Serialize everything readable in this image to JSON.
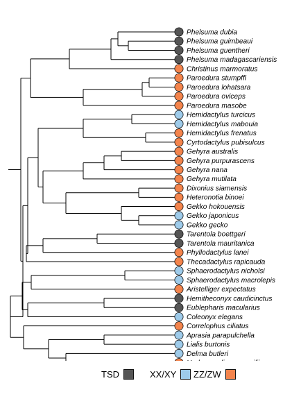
{
  "colors": {
    "TSD": "#555555",
    "XX/XY": "#9ecbea",
    "ZZ/ZW": "#f4844c"
  },
  "legend": [
    {
      "code": "TSD",
      "label": "TSD"
    },
    {
      "code": "XX/XY",
      "label": "XX/XY"
    },
    {
      "code": "ZZ/ZW",
      "label": "ZZ/ZW"
    }
  ],
  "taxa": [
    {
      "name": "Phelsuma dubia",
      "sd": "TSD"
    },
    {
      "name": "Phelsuma guimbeaui",
      "sd": "TSD"
    },
    {
      "name": "Phelsuma guentheri",
      "sd": "TSD"
    },
    {
      "name": "Phelsuma madagascariensis",
      "sd": "TSD"
    },
    {
      "name": "Christinus marmoratus",
      "sd": "ZZ/ZW"
    },
    {
      "name": "Paroedura stumpffi",
      "sd": "ZZ/ZW"
    },
    {
      "name": "Paroedura lohatsara",
      "sd": "ZZ/ZW"
    },
    {
      "name": "Paroedura oviceps",
      "sd": "ZZ/ZW"
    },
    {
      "name": "Paroedura masobe",
      "sd": "ZZ/ZW"
    },
    {
      "name": "Hemidactylus turcicus",
      "sd": "XX/XY"
    },
    {
      "name": "Hemidactylus mabouia",
      "sd": "XX/XY"
    },
    {
      "name": "Hemidactylus frenatus",
      "sd": "ZZ/ZW"
    },
    {
      "name": "Cyrtodactylus pubisulcus",
      "sd": "ZZ/ZW"
    },
    {
      "name": "Gehyra australis",
      "sd": "ZZ/ZW"
    },
    {
      "name": "Gehyra purpurascens",
      "sd": "ZZ/ZW"
    },
    {
      "name": "Gehyra nana",
      "sd": "ZZ/ZW"
    },
    {
      "name": "Gehyra mutilata",
      "sd": "ZZ/ZW"
    },
    {
      "name": "Dixonius siamensis",
      "sd": "ZZ/ZW"
    },
    {
      "name": "Heteronotia binoei",
      "sd": "ZZ/ZW"
    },
    {
      "name": "Gekko hokouensis",
      "sd": "ZZ/ZW"
    },
    {
      "name": "Gekko japonicus",
      "sd": "XX/XY"
    },
    {
      "name": "Gekko gecko",
      "sd": "XX/XY"
    },
    {
      "name": "Tarentola boettgeri",
      "sd": "TSD"
    },
    {
      "name": "Tarentola mauritanica",
      "sd": "TSD"
    },
    {
      "name": "Phyllodactylus lanei",
      "sd": "ZZ/ZW"
    },
    {
      "name": "Thecadactylus rapicauda",
      "sd": "ZZ/ZW"
    },
    {
      "name": "Sphaerodactylus nicholsi",
      "sd": "XX/XY"
    },
    {
      "name": "Sphaerodactylus macrolepis",
      "sd": "XX/XY"
    },
    {
      "name": "Aristelliger expectatus",
      "sd": "ZZ/ZW"
    },
    {
      "name": "Hemitheconyx caudicinctus",
      "sd": "TSD"
    },
    {
      "name": "Eublepharis macularius",
      "sd": "TSD"
    },
    {
      "name": "Coleonyx elegans",
      "sd": "XX/XY"
    },
    {
      "name": "Correlophus ciliatus",
      "sd": "ZZ/ZW"
    },
    {
      "name": "Aprasia parapulchella",
      "sd": "XX/XY"
    },
    {
      "name": "Lialis burtonis",
      "sd": "XX/XY"
    },
    {
      "name": "Delma butleri",
      "sd": "XX/XY"
    },
    {
      "name": "Underwoodisaurus milii",
      "sd": "ZZ/ZW"
    }
  ]
}
